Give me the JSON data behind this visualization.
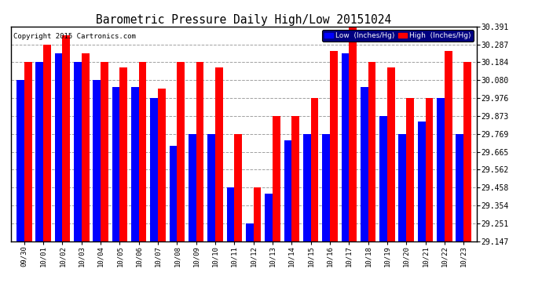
{
  "title": "Barometric Pressure Daily High/Low 20151024",
  "copyright": "Copyright 2015 Cartronics.com",
  "legend_low": "Low  (Inches/Hg)",
  "legend_high": "High  (Inches/Hg)",
  "dates": [
    "09/30",
    "10/01",
    "10/02",
    "10/03",
    "10/04",
    "10/05",
    "10/06",
    "10/07",
    "10/08",
    "10/09",
    "10/10",
    "10/11",
    "10/12",
    "10/13",
    "10/14",
    "10/15",
    "10/16",
    "10/17",
    "10/18",
    "10/19",
    "10/20",
    "10/21",
    "10/22",
    "10/23"
  ],
  "low_values": [
    30.08,
    30.184,
    30.236,
    30.184,
    30.08,
    30.04,
    30.04,
    29.976,
    29.7,
    29.769,
    29.769,
    29.458,
    29.251,
    29.42,
    29.73,
    29.769,
    29.769,
    30.236,
    30.04,
    29.873,
    29.769,
    29.84,
    29.976,
    29.769
  ],
  "high_values": [
    30.184,
    30.287,
    30.34,
    30.236,
    30.184,
    30.154,
    30.184,
    30.03,
    30.184,
    30.184,
    30.154,
    29.769,
    29.458,
    29.873,
    29.873,
    29.976,
    30.25,
    30.391,
    30.184,
    30.154,
    29.976,
    29.976,
    30.25,
    30.184
  ],
  "ylim_min": 29.147,
  "ylim_max": 30.391,
  "yticks": [
    29.147,
    29.251,
    29.354,
    29.458,
    29.562,
    29.665,
    29.769,
    29.873,
    29.976,
    30.08,
    30.184,
    30.287,
    30.391
  ],
  "low_color": "#0000ff",
  "high_color": "#ff0000",
  "bg_color": "#ffffff",
  "plot_bg_color": "#ffffff",
  "grid_color": "#888888",
  "title_color": "#000000",
  "bar_width": 0.4
}
